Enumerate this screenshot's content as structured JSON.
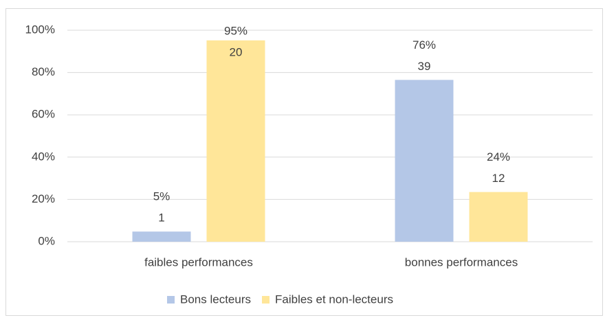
{
  "chart_data": {
    "type": "bar",
    "categories": [
      "faibles performances",
      "bonnes performances"
    ],
    "series": [
      {
        "name": "Bons lecteurs",
        "color": "#b4c7e7",
        "values": [
          4.8,
          76.5
        ],
        "value_labels": [
          "5%",
          "76%"
        ],
        "counts": [
          1,
          39
        ]
      },
      {
        "name": "Faibles et non-lecteurs",
        "color": "#ffe699",
        "values": [
          95.2,
          23.5
        ],
        "value_labels": [
          "95%",
          "24%"
        ],
        "counts": [
          20,
          12
        ]
      }
    ],
    "ylim": [
      0,
      100
    ],
    "yticks": [
      {
        "value": 0,
        "label": "0%"
      },
      {
        "value": 20,
        "label": "20%"
      },
      {
        "value": 40,
        "label": "40%"
      },
      {
        "value": 60,
        "label": "60%"
      },
      {
        "value": 80,
        "label": "80%"
      },
      {
        "value": 100,
        "label": "100%"
      }
    ],
    "grid": true,
    "legend": "bottom"
  }
}
